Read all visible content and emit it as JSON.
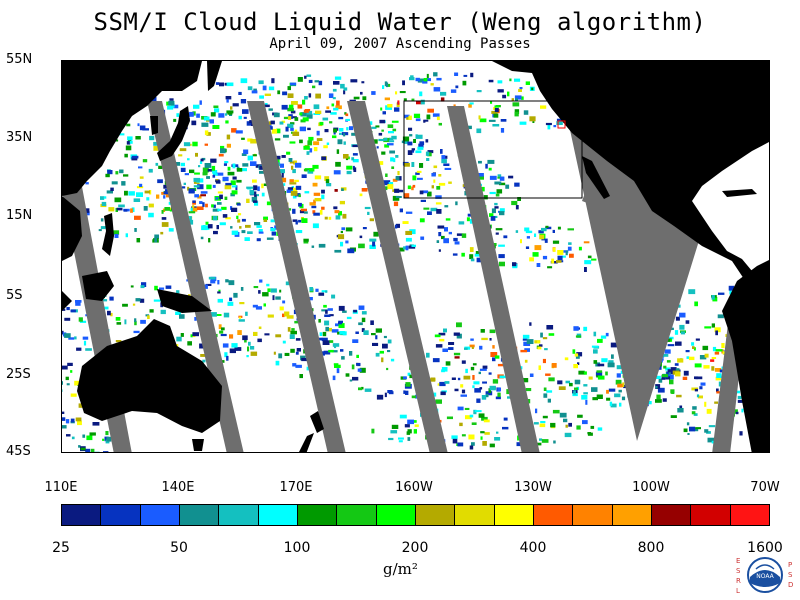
{
  "title": "SSM/I Cloud Liquid Water (Weng algorithm)",
  "subtitle": "April 09, 2007  Ascending Passes",
  "map": {
    "lat_labels": [
      "55N",
      "35N",
      "15N",
      "5S",
      "25S",
      "45S"
    ],
    "lon_labels": [
      "110E",
      "140E",
      "170E",
      "160W",
      "130W",
      "100W",
      "70W"
    ],
    "land_color": "#000000",
    "no_data_color": "#6e6e6e",
    "background_color": "#ffffff",
    "inset_box_color": "#000000",
    "marker_color": "#ff0000"
  },
  "colorbar": {
    "colors": [
      "#0a1a80",
      "#0633c0",
      "#1a5cff",
      "#119090",
      "#14c0c0",
      "#00ffff",
      "#009a00",
      "#14c814",
      "#00ff00",
      "#b4aa00",
      "#e1dc00",
      "#ffff00",
      "#ff5a00",
      "#ff8200",
      "#ffa000",
      "#960000",
      "#d20000",
      "#ff1414"
    ],
    "labels": [
      "25",
      "50",
      "100",
      "200",
      "400",
      "800",
      "1600"
    ],
    "units_text": "g/m²"
  },
  "logo": {
    "left_letters": [
      "E",
      "S",
      "R",
      "L"
    ],
    "right_letters": [
      "P",
      "S",
      "D"
    ],
    "center_text": "NOAA"
  }
}
